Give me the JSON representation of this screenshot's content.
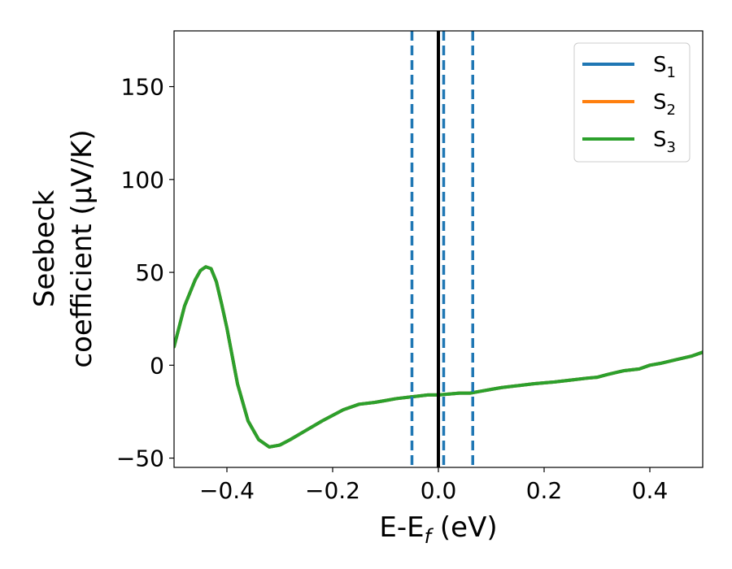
{
  "chart_data": {
    "type": "line",
    "title": "",
    "xlabel": "E-E",
    "xlabel_sub": "f",
    "xlabel_unit": " (eV)",
    "ylabel_line1": "Seebeck",
    "ylabel_line2": "coefficient  (μV/K)",
    "xlim": [
      -0.5,
      0.5
    ],
    "ylim": [
      -55,
      180
    ],
    "xticks": [
      -0.4,
      -0.2,
      0.0,
      0.2,
      0.4
    ],
    "xtick_labels": [
      "−0.4",
      "−0.2",
      "0.0",
      "0.2",
      "0.4"
    ],
    "yticks": [
      -50,
      0,
      50,
      100,
      150
    ],
    "ytick_labels": [
      "−50",
      "0",
      "50",
      "100",
      "150"
    ],
    "grid": false,
    "legend_position": "top-right",
    "series": [
      {
        "name": "S",
        "sub": "1",
        "color": "#1f77b4",
        "x": [
          -0.5,
          -0.48,
          -0.46,
          -0.45,
          -0.44,
          -0.43,
          -0.42,
          -0.41,
          -0.4,
          -0.38,
          -0.36,
          -0.34,
          -0.32,
          -0.3,
          -0.28,
          -0.25,
          -0.22,
          -0.2,
          -0.18,
          -0.15,
          -0.12,
          -0.1,
          -0.08,
          -0.05,
          -0.02,
          0.0,
          0.02,
          0.04,
          0.06,
          0.08,
          0.1,
          0.12,
          0.15,
          0.18,
          0.2,
          0.22,
          0.25,
          0.28,
          0.3,
          0.32,
          0.35,
          0.38,
          0.4,
          0.42,
          0.45,
          0.48,
          0.5
        ],
        "y": [
          10,
          32,
          46,
          51,
          53,
          52,
          45,
          33,
          20,
          -10,
          -30,
          -40,
          -44,
          -43,
          -40,
          -35,
          -30,
          -27,
          -24,
          -21,
          -20,
          -19,
          -18,
          -17,
          -16,
          -16,
          -15.5,
          -15,
          -15,
          -14,
          -13,
          -12,
          -11,
          -10,
          -9.5,
          -9,
          -8,
          -7,
          -6.5,
          -5,
          -3,
          -2,
          0,
          1,
          3,
          5,
          7
        ]
      },
      {
        "name": "S",
        "sub": "2",
        "color": "#ff7f0e",
        "x": [
          -0.5,
          -0.48,
          -0.46,
          -0.45,
          -0.44,
          -0.43,
          -0.42,
          -0.41,
          -0.4,
          -0.38,
          -0.36,
          -0.34,
          -0.32,
          -0.3,
          -0.28,
          -0.25,
          -0.22,
          -0.2,
          -0.18,
          -0.15,
          -0.12,
          -0.1,
          -0.08,
          -0.05,
          -0.02,
          0.0,
          0.02,
          0.04,
          0.06,
          0.08,
          0.1,
          0.12,
          0.15,
          0.18,
          0.2,
          0.22,
          0.25,
          0.28,
          0.3,
          0.32,
          0.35,
          0.38,
          0.4,
          0.42,
          0.45,
          0.48,
          0.5
        ],
        "y": [
          10,
          32,
          46,
          51,
          53,
          52,
          45,
          33,
          20,
          -10,
          -30,
          -40,
          -44,
          -43,
          -40,
          -35,
          -30,
          -27,
          -24,
          -21,
          -20,
          -19,
          -18,
          -17,
          -16,
          -16,
          -15.5,
          -15,
          -15,
          -14,
          -13,
          -12,
          -11,
          -10,
          -9.5,
          -9,
          -8,
          -7,
          -6.5,
          -5,
          -3,
          -2,
          0,
          1,
          3,
          5,
          7
        ]
      },
      {
        "name": "S",
        "sub": "3",
        "color": "#2ca02c",
        "x": [
          -0.5,
          -0.48,
          -0.46,
          -0.45,
          -0.44,
          -0.43,
          -0.42,
          -0.41,
          -0.4,
          -0.38,
          -0.36,
          -0.34,
          -0.32,
          -0.3,
          -0.28,
          -0.25,
          -0.22,
          -0.2,
          -0.18,
          -0.15,
          -0.12,
          -0.1,
          -0.08,
          -0.05,
          -0.02,
          0.0,
          0.02,
          0.04,
          0.06,
          0.08,
          0.1,
          0.12,
          0.15,
          0.18,
          0.2,
          0.22,
          0.25,
          0.28,
          0.3,
          0.32,
          0.35,
          0.38,
          0.4,
          0.42,
          0.45,
          0.48,
          0.5
        ],
        "y": [
          10,
          32,
          46,
          51,
          53,
          52,
          45,
          33,
          20,
          -10,
          -30,
          -40,
          -44,
          -43,
          -40,
          -35,
          -30,
          -27,
          -24,
          -21,
          -20,
          -19,
          -18,
          -17,
          -16,
          -16,
          -15.5,
          -15,
          -15,
          -14,
          -13,
          -12,
          -11,
          -10,
          -9.5,
          -9,
          -8,
          -7,
          -6.5,
          -5,
          -3,
          -2,
          0,
          1,
          3,
          5,
          7
        ]
      }
    ],
    "vlines": [
      {
        "x": -0.05,
        "style": "dashed",
        "color": "#1f77b4"
      },
      {
        "x": 0.01,
        "style": "dashed",
        "color": "#1f77b4"
      },
      {
        "x": 0.065,
        "style": "dashed",
        "color": "#1f77b4"
      },
      {
        "x": 0.0,
        "style": "solid",
        "color": "#000000"
      }
    ]
  }
}
